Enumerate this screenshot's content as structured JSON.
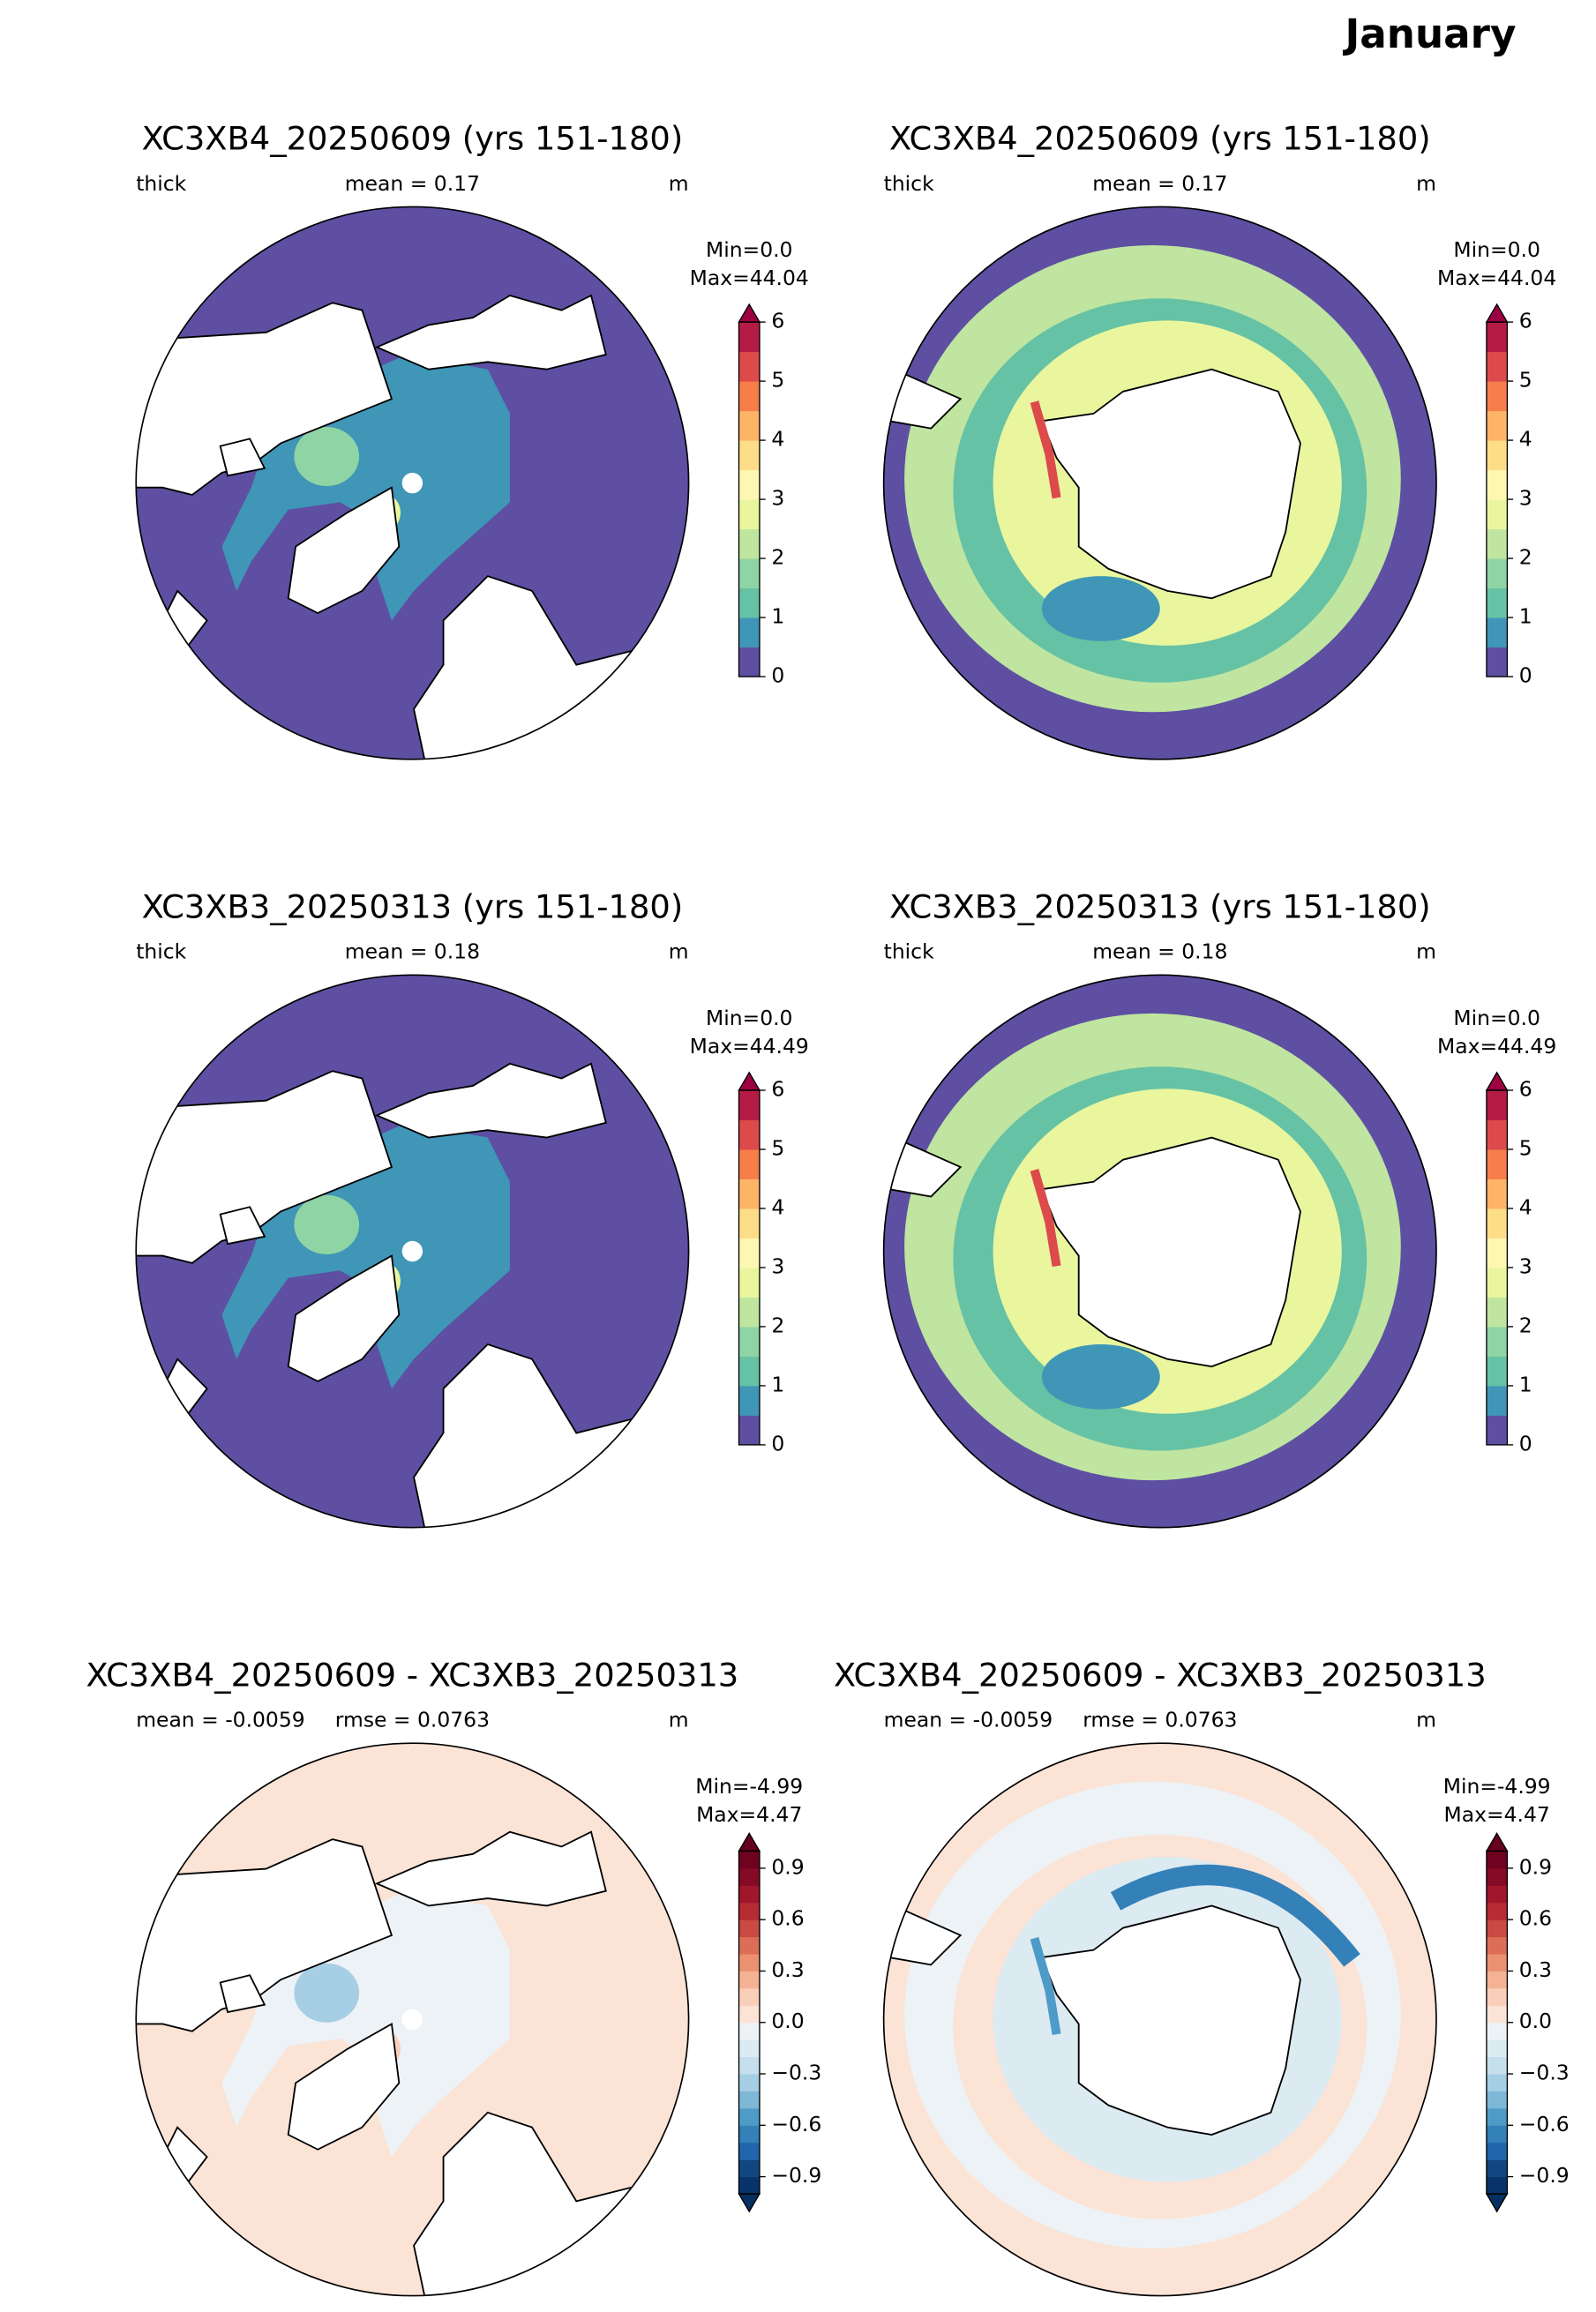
{
  "title": "January",
  "panels": [
    {
      "title": "XC3XB4_20250609 (yrs 151-180)",
      "left": "thick",
      "center": "mean = 0.17",
      "right": "m",
      "min": "Min=0.0",
      "max": "Max=44.04",
      "colorbar": {
        "lim": [
          0,
          6
        ],
        "ticks": [
          0,
          1,
          2,
          3,
          4,
          5,
          6
        ],
        "extend": "max",
        "over": "#9e0142",
        "colors": [
          "#5e4fa2",
          "#3f96b7",
          "#66c2a5",
          "#8fd4a4",
          "#bfe5a0",
          "#e9f69e",
          "#fef7b2",
          "#fddd87",
          "#fdb466",
          "#f67e4b",
          "#dd4a4c",
          "#b51c45"
        ]
      }
    },
    {
      "title": "XC3XB4_20250609 (yrs 151-180)",
      "left": "thick",
      "center": "mean = 0.17",
      "right": "m",
      "min": "Min=0.0",
      "max": "Max=44.04",
      "colorbar": {
        "lim": [
          0,
          6
        ],
        "ticks": [
          0,
          1,
          2,
          3,
          4,
          5,
          6
        ],
        "extend": "max",
        "over": "#9e0142",
        "colors": [
          "#5e4fa2",
          "#3f96b7",
          "#66c2a5",
          "#8fd4a4",
          "#bfe5a0",
          "#e9f69e",
          "#fef7b2",
          "#fddd87",
          "#fdb466",
          "#f67e4b",
          "#dd4a4c",
          "#b51c45"
        ]
      }
    },
    {
      "title": "XC3XB3_20250313 (yrs 151-180)",
      "left": "thick",
      "center": "mean = 0.18",
      "right": "m",
      "min": "Min=0.0",
      "max": "Max=44.49",
      "colorbar": {
        "lim": [
          0,
          6
        ],
        "ticks": [
          0,
          1,
          2,
          3,
          4,
          5,
          6
        ],
        "extend": "max",
        "over": "#9e0142",
        "colors": [
          "#5e4fa2",
          "#3f96b7",
          "#66c2a5",
          "#8fd4a4",
          "#bfe5a0",
          "#e9f69e",
          "#fef7b2",
          "#fddd87",
          "#fdb466",
          "#f67e4b",
          "#dd4a4c",
          "#b51c45"
        ]
      }
    },
    {
      "title": "XC3XB3_20250313 (yrs 151-180)",
      "left": "thick",
      "center": "mean = 0.18",
      "right": "m",
      "min": "Min=0.0",
      "max": "Max=44.49",
      "colorbar": {
        "lim": [
          0,
          6
        ],
        "ticks": [
          0,
          1,
          2,
          3,
          4,
          5,
          6
        ],
        "extend": "max",
        "over": "#9e0142",
        "colors": [
          "#5e4fa2",
          "#3f96b7",
          "#66c2a5",
          "#8fd4a4",
          "#bfe5a0",
          "#e9f69e",
          "#fef7b2",
          "#fddd87",
          "#fdb466",
          "#f67e4b",
          "#dd4a4c",
          "#b51c45"
        ]
      }
    },
    {
      "title": "XC3XB4_20250609 - XC3XB3_20250313",
      "left": "mean = -0.0059",
      "center": "rmse = 0.0763",
      "right": "m",
      "min": "Min=-4.99",
      "max": "Max=4.47",
      "colorbar": {
        "lim": [
          -1,
          1
        ],
        "ticks": [
          {
            "value": -0.9,
            "label": "−0.9"
          },
          {
            "value": -0.6,
            "label": "−0.6"
          },
          {
            "value": -0.3,
            "label": "−0.3"
          },
          {
            "value": 0,
            "label": "0.0"
          },
          0.3,
          0.6,
          0.9
        ],
        "extend": "both",
        "over": "#67001f",
        "under": "#053061",
        "colors": [
          "#08336a",
          "#114781",
          "#2166ac",
          "#3480b9",
          "#4f9bc7",
          "#7eb8d7",
          "#a6cee4",
          "#c6dfed",
          "#dceaf2",
          "#edf2f6",
          "#fbe3d5",
          "#f9cfba",
          "#f5b295",
          "#eb9172",
          "#dc6e57",
          "#c94a43",
          "#b72b35",
          "#a2162c",
          "#850a25",
          "#6f021f"
        ]
      }
    },
    {
      "title": "XC3XB4_20250609 - XC3XB3_20250313",
      "left": "mean = -0.0059",
      "center": "rmse = 0.0763",
      "right": "m",
      "min": "Min=-4.99",
      "max": "Max=4.47",
      "colorbar": {
        "lim": [
          -1,
          1
        ],
        "ticks": [
          {
            "value": -0.9,
            "label": "−0.9"
          },
          {
            "value": -0.6,
            "label": "−0.6"
          },
          {
            "value": -0.3,
            "label": "−0.3"
          },
          {
            "value": 0,
            "label": "0.0"
          },
          0.3,
          0.6,
          0.9
        ],
        "extend": "both",
        "over": "#67001f",
        "under": "#053061",
        "colors": [
          "#08336a",
          "#114781",
          "#2166ac",
          "#3480b9",
          "#4f9bc7",
          "#7eb8d7",
          "#a6cee4",
          "#c6dfed",
          "#dceaf2",
          "#edf2f6",
          "#fbe3d5",
          "#f9cfba",
          "#f5b295",
          "#eb9172",
          "#dc6e57",
          "#c94a43",
          "#b72b35",
          "#a2162c",
          "#850a25",
          "#6f021f"
        ]
      }
    }
  ]
}
